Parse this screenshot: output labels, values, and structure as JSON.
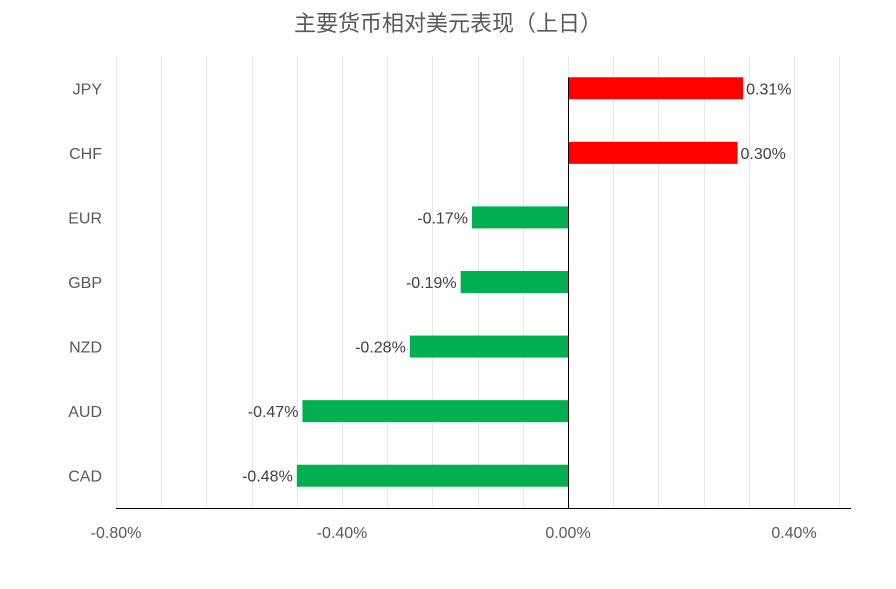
{
  "chart_data": {
    "type": "bar",
    "orientation": "horizontal",
    "title": "主要货币相对美元表现（上日）",
    "xlabel": "",
    "ylabel": "",
    "categories": [
      "JPY",
      "CHF",
      "EUR",
      "GBP",
      "NZD",
      "AUD",
      "CAD"
    ],
    "values": [
      0.31,
      0.3,
      -0.17,
      -0.19,
      -0.28,
      -0.47,
      -0.48
    ],
    "data_labels": [
      "0.31%",
      "0.30%",
      "-0.17%",
      "-0.19%",
      "-0.28%",
      "-0.47%",
      "-0.48%"
    ],
    "xlim": [
      -0.8,
      0.5
    ],
    "x_ticks": [
      -0.8,
      -0.4,
      0.0,
      0.4
    ],
    "x_tick_labels": [
      "-0.80%",
      "-0.40%",
      "0.00%",
      "0.40%"
    ],
    "minor_grid_step": 0.08,
    "grid": true,
    "legend": "none",
    "colors": {
      "positive": "#ff0000",
      "negative": "#00b050",
      "axis": "#000000",
      "grid": "#e8e8e8"
    }
  }
}
